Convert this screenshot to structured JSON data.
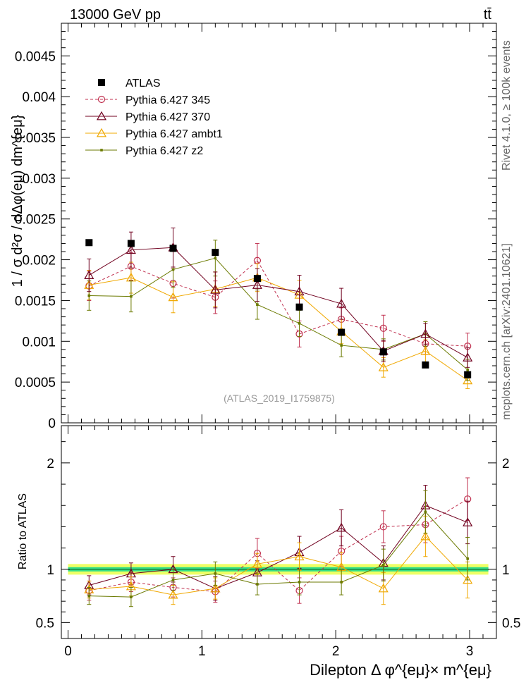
{
  "header": {
    "left": "13000 GeV pp",
    "right": "tt̄"
  },
  "side_labels": {
    "rivet": "Rivet 4.1.0, ≥ 100k events",
    "mcplots": "mcplots.cern.ch [arXiv:2401.10621]"
  },
  "analysis_label": "(ATLAS_2019_I1759875)",
  "colors": {
    "atlas": "#000000",
    "p345": "#c0304f",
    "p370": "#70001f",
    "ambt1": "#f0a800",
    "z2": "#6b7a00",
    "band_inner": "#33dd88",
    "band_outer": "#eeff66"
  },
  "chart_data": [
    {
      "name": "main",
      "type": "scatter",
      "ylabel": "1 / σ  d²σ / dΔφ(eμ) dm^{eμ}",
      "ylim": [
        0,
        0.0049
      ],
      "ytick_values": [
        0,
        0.0005,
        0.001,
        0.0015,
        0.002,
        0.0025,
        0.003,
        0.0035,
        0.004,
        0.0045
      ],
      "ytick_labels": [
        "0",
        "0.0005",
        "0.001",
        "0.0015",
        "0.002",
        "0.0025",
        "0.003",
        "0.0035",
        "0.004",
        "0.0045"
      ],
      "xlim": [
        -0.05,
        3.2
      ],
      "x": [
        0.157,
        0.471,
        0.785,
        1.1,
        1.414,
        1.728,
        2.042,
        2.356,
        2.67,
        2.985
      ],
      "series": [
        {
          "key": "atlas",
          "name": "ATLAS",
          "marker": "square",
          "line": "none",
          "values": [
            0.00221,
            0.0022,
            0.00214,
            0.00209,
            0.00177,
            0.00142,
            0.00111,
            0.00087,
            0.00071,
            0.00059
          ],
          "errors": [
            0,
            0,
            0,
            0,
            0,
            0,
            0,
            0,
            0,
            0
          ]
        },
        {
          "key": "p345",
          "name": "Pythia 6.427 345",
          "marker": "circle",
          "line": "dashed",
          "values": [
            0.00168,
            0.00192,
            0.00171,
            0.00154,
            0.00199,
            0.00109,
            0.00127,
            0.00116,
            0.00097,
            0.00094
          ],
          "errors": [
            0.00018,
            0.00017,
            0.00018,
            0.0002,
            0.00021,
            0.00016,
            0.00014,
            0.00016,
            0.00013,
            0.00016
          ]
        },
        {
          "key": "p370",
          "name": "Pythia 6.427 370",
          "marker": "triangle",
          "line": "solid",
          "values": [
            0.00181,
            0.00212,
            0.00215,
            0.00163,
            0.00169,
            0.00161,
            0.00146,
            0.00088,
            0.00109,
            0.0008
          ],
          "errors": [
            0.0002,
            0.00022,
            0.00024,
            0.00022,
            0.0002,
            0.0002,
            0.00019,
            0.00013,
            0.00013,
            0.00012
          ]
        },
        {
          "key": "ambt1",
          "name": "Pythia 6.427 ambt1",
          "marker": "open-triangle",
          "line": "solid",
          "values": [
            0.00169,
            0.00178,
            0.00154,
            0.00164,
            0.00178,
            0.00157,
            0.00112,
            0.00068,
            0.00088,
            0.00052
          ],
          "errors": [
            0.00018,
            0.00019,
            0.00019,
            0.00021,
            0.00017,
            0.00018,
            0.00015,
            0.00012,
            0.00014,
            0.0001
          ]
        },
        {
          "key": "z2",
          "name": "Pythia 6.427 z2",
          "marker": "dot",
          "line": "solid",
          "values": [
            0.00156,
            0.00155,
            0.00188,
            0.00202,
            0.00145,
            0.00122,
            0.00095,
            0.0009,
            0.00109,
            0.00065
          ],
          "errors": [
            0.00018,
            0.00019,
            0.00022,
            0.00022,
            0.00018,
            0.00016,
            0.00014,
            0.00013,
            0.00015,
            0.00013
          ]
        }
      ]
    },
    {
      "name": "ratio",
      "type": "scatter",
      "ylabel": "Ratio to ATLAS",
      "xlabel": "Dilepton Δ φ^{eμ}× m^{eμ}",
      "ylim": [
        0.35,
        2.35
      ],
      "ytick_values": [
        0.5,
        1,
        2
      ],
      "ytick_labels": [
        "0.5",
        "1",
        "2"
      ],
      "xlim": [
        -0.05,
        3.2
      ],
      "xtick_values": [
        0,
        1,
        2,
        3
      ],
      "xtick_labels": [
        "0",
        "1",
        "2",
        "3"
      ],
      "band_inner": 0.02,
      "band_outer": 0.05,
      "series": [
        {
          "key": "p345",
          "values": [
            0.8,
            0.88,
            0.83,
            0.79,
            1.15,
            0.8,
            1.17,
            1.4,
            1.42,
            1.66
          ],
          "errors": [
            0.09,
            0.09,
            0.09,
            0.1,
            0.14,
            0.12,
            0.14,
            0.15,
            0.17,
            0.2
          ]
        },
        {
          "key": "p370",
          "values": [
            0.85,
            0.96,
            1.0,
            0.82,
            0.97,
            1.16,
            1.39,
            1.06,
            1.6,
            1.44
          ],
          "errors": [
            0.09,
            0.1,
            0.12,
            0.11,
            0.11,
            0.15,
            0.17,
            0.16,
            0.19,
            0.2
          ]
        },
        {
          "key": "ambt1",
          "values": [
            0.81,
            0.84,
            0.76,
            0.82,
            1.05,
            1.12,
            1.02,
            0.82,
            1.31,
            0.9
          ],
          "errors": [
            0.08,
            0.09,
            0.09,
            0.1,
            0.1,
            0.13,
            0.14,
            0.15,
            0.19,
            0.17
          ]
        },
        {
          "key": "z2",
          "values": [
            0.75,
            0.74,
            0.9,
            0.96,
            0.86,
            0.88,
            0.88,
            1.04,
            1.54,
            1.1
          ],
          "errors": [
            0.08,
            0.09,
            0.1,
            0.11,
            0.1,
            0.12,
            0.12,
            0.15,
            0.2,
            0.2
          ]
        }
      ]
    }
  ]
}
